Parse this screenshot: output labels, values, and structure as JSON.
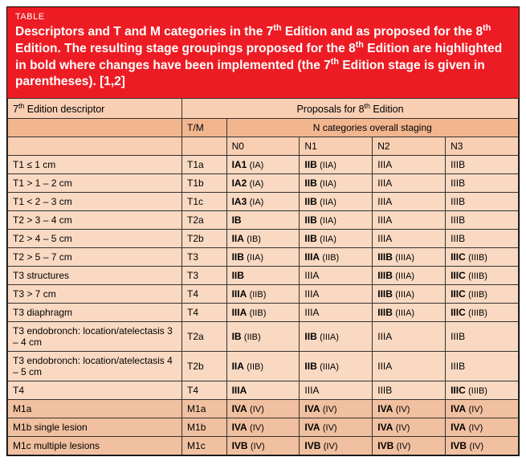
{
  "header": {
    "label": "TABLE",
    "title_html": "Descriptors and T and M categories in the 7<sup>th</sup> Edition and as proposed for the 8<sup>th</sup> Edition. The resulting stage groupings proposed for the 8<sup>th</sup> Edition are highlighted in bold where changes have been implemented (the 7<sup>th</sup> Edition stage is given in parentheses). [1,2]"
  },
  "colheads": {
    "descriptor_html": "7<sup>th</sup> Edition descriptor",
    "proposals_html": "Proposals for 8<sup>th</sup> Edition",
    "tm": "T/M",
    "ncat": "N categories overall staging",
    "n0": "N0",
    "n1": "N1",
    "n2": "N2",
    "n3": "N3"
  },
  "rows": [
    {
      "desc": "T1 ≤ 1 cm",
      "tm": "T1a",
      "cells": [
        {
          "b": "IA1",
          "p": "(IA)"
        },
        {
          "b": "IIB",
          "p": "(IIA)"
        },
        {
          "t": "IIIA"
        },
        {
          "t": "IIIB"
        }
      ],
      "m": false
    },
    {
      "desc": "T1 > 1 – 2 cm",
      "tm": "T1b",
      "cells": [
        {
          "b": "IA2",
          "p": "(IA)"
        },
        {
          "b": "IIB",
          "p": "(IIA)"
        },
        {
          "t": "IIIA"
        },
        {
          "t": "IIIB"
        }
      ],
      "m": false
    },
    {
      "desc": "T1 < 2 – 3 cm",
      "tm": "T1c",
      "cells": [
        {
          "b": "IA3",
          "p": "(IA)"
        },
        {
          "b": "IIB",
          "p": "(IIA)"
        },
        {
          "t": "IIIA"
        },
        {
          "t": "IIIB"
        }
      ],
      "m": false
    },
    {
      "desc": "T2 > 3 – 4 cm",
      "tm": "T2a",
      "cells": [
        {
          "b": "IB"
        },
        {
          "b": "IIB",
          "p": "(IIA)"
        },
        {
          "t": "IIIA"
        },
        {
          "t": "IIIB"
        }
      ],
      "m": false
    },
    {
      "desc": "T2 > 4 – 5 cm",
      "tm": "T2b",
      "cells": [
        {
          "b": "IIA",
          "p": "(IB)"
        },
        {
          "b": "IIB",
          "p": "(IIA)"
        },
        {
          "t": "IIIA"
        },
        {
          "t": "IIIB"
        }
      ],
      "m": false
    },
    {
      "desc": "T2 > 5 – 7 cm",
      "tm": "T3",
      "cells": [
        {
          "b": "IIB",
          "p": "(IIA)"
        },
        {
          "b": "IIIA",
          "p": "(IIB)"
        },
        {
          "b": "IIIB",
          "p": "(IIIA)"
        },
        {
          "b": "IIIC",
          "p": "(IIIB)"
        }
      ],
      "m": false
    },
    {
      "desc": "T3 structures",
      "tm": "T3",
      "cells": [
        {
          "b": "IIB"
        },
        {
          "t": "IIIA"
        },
        {
          "b": "IIIB",
          "p": "(IIIA)"
        },
        {
          "b": "IIIC",
          "p": "(IIIB)"
        }
      ],
      "m": false
    },
    {
      "desc": "T3 > 7 cm",
      "tm": "T4",
      "cells": [
        {
          "b": "IIIA",
          "p": "(IIB)"
        },
        {
          "t": "IIIA"
        },
        {
          "b": "IIIB",
          "p": "(IIIA)"
        },
        {
          "b": "IIIC",
          "p": "(IIIB)"
        }
      ],
      "m": false
    },
    {
      "desc": "T3 diaphragm",
      "tm": "T4",
      "cells": [
        {
          "b": "IIIA",
          "p": "(IIB)"
        },
        {
          "t": "IIIA"
        },
        {
          "b": "IIIB",
          "p": "(IIIA)"
        },
        {
          "b": "IIIC",
          "p": "(IIIB)"
        }
      ],
      "m": false
    },
    {
      "desc": "T3 endobronch: location/atelectasis 3 – 4 cm",
      "tm": "T2a",
      "cells": [
        {
          "b": "IB",
          "p": "(IIB)"
        },
        {
          "b": "IIB",
          "p": "(IIIA)"
        },
        {
          "t": "IIIA"
        },
        {
          "t": "IIIB"
        }
      ],
      "m": false
    },
    {
      "desc": "T3 endobronch: location/atelectasis 4 – 5 cm",
      "tm": "T2b",
      "cells": [
        {
          "b": "IIA",
          "p": "(IIB)"
        },
        {
          "b": "IIB",
          "p": "(IIIA)"
        },
        {
          "t": "IIIA"
        },
        {
          "t": "IIIB"
        }
      ],
      "m": false
    },
    {
      "desc": "T4",
      "tm": "T4",
      "cells": [
        {
          "b": "IIIA"
        },
        {
          "t": "IIIA"
        },
        {
          "t": "IIIB"
        },
        {
          "b": "IIIC",
          "p": "(IIIB)"
        }
      ],
      "m": false
    },
    {
      "desc": "M1a",
      "tm": "M1a",
      "cells": [
        {
          "b": "IVA",
          "p": "(IV)"
        },
        {
          "b": "IVA",
          "p": "(IV)"
        },
        {
          "b": "IVA",
          "p": "(IV)"
        },
        {
          "b": "IVA",
          "p": "(IV)"
        }
      ],
      "m": true
    },
    {
      "desc": "M1b single lesion",
      "tm": "M1b",
      "cells": [
        {
          "b": "IVA",
          "p": "(IV)"
        },
        {
          "b": "IVA",
          "p": "(IV)"
        },
        {
          "b": "IVA",
          "p": "(IV)"
        },
        {
          "b": "IVA",
          "p": "(IV)"
        }
      ],
      "m": true
    },
    {
      "desc": "M1c multiple lesions",
      "tm": "M1c",
      "cells": [
        {
          "b": "IVB",
          "p": "(IV)"
        },
        {
          "b": "IVB",
          "p": "(IV)"
        },
        {
          "b": "IVB",
          "p": "(IV)"
        },
        {
          "b": "IVB",
          "p": "(IV)"
        }
      ],
      "m": true
    }
  ]
}
